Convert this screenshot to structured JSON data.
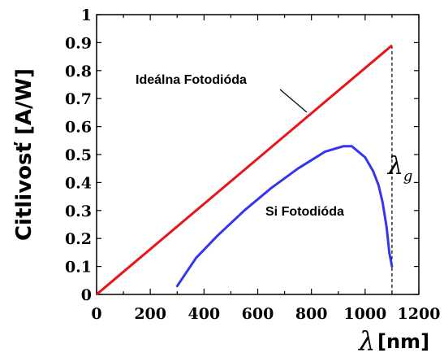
{
  "chart_data": {
    "type": "line",
    "title": "",
    "ylabel": "Citlivosť [A/W]",
    "xlabel_symbol": "λ",
    "xlabel_unit": "[nm]",
    "xlim": [
      0,
      1200
    ],
    "ylim": [
      0,
      1
    ],
    "x_ticks": [
      "0",
      "200",
      "400",
      "600",
      "800",
      "1000",
      "1200"
    ],
    "y_ticks": [
      "0",
      "0.1",
      "0.2",
      "0.3",
      "0.4",
      "0.5",
      "0.6",
      "0.7",
      "0.8",
      "0.9",
      "1"
    ],
    "series": [
      {
        "name": "Ideálna Fotodióda",
        "color": "#e8141b",
        "x": [
          0,
          1100
        ],
        "y": [
          0,
          0.89
        ]
      },
      {
        "name": "Si Fotodióda",
        "color": "#3535f0",
        "x": [
          300,
          370,
          450,
          550,
          650,
          750,
          850,
          920,
          950,
          1000,
          1030,
          1050,
          1065,
          1080,
          1090,
          1100
        ],
        "y": [
          0.03,
          0.13,
          0.21,
          0.3,
          0.38,
          0.45,
          0.51,
          0.53,
          0.53,
          0.49,
          0.44,
          0.39,
          0.33,
          0.24,
          0.15,
          0.1
        ]
      }
    ],
    "annotations": {
      "ideal_label": "Ideálna Fotodióda",
      "si_label": "Si Fotodióda",
      "cutoff_symbol": "λ",
      "cutoff_subscript": "g",
      "cutoff_x": 1100
    },
    "grid": false
  }
}
